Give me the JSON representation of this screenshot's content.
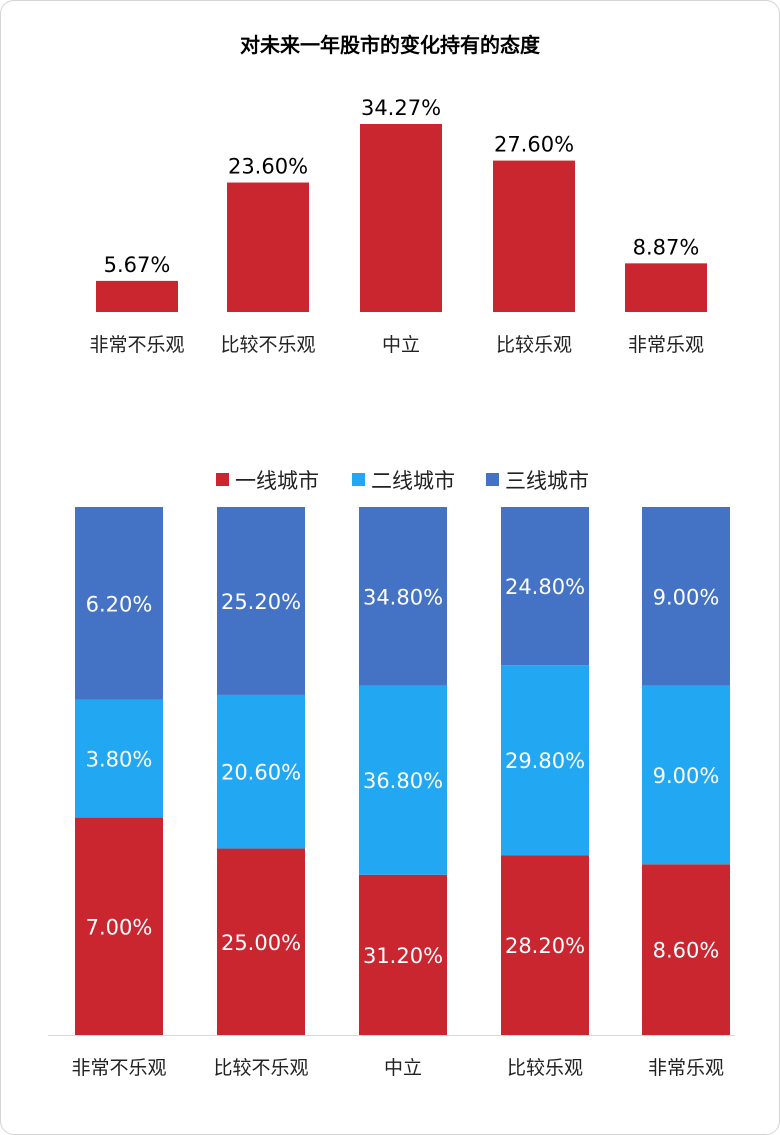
{
  "chart_data": [
    {
      "type": "bar",
      "title": "对未来一年股市的变化持有的态度",
      "categories": [
        "非常不乐观",
        "比较不乐观",
        "中立",
        "比较乐观",
        "非常乐观"
      ],
      "values": [
        5.67,
        23.6,
        34.27,
        27.6,
        8.87
      ],
      "value_labels": [
        "5.67%",
        "23.60%",
        "34.27%",
        "27.60%",
        "8.87%"
      ],
      "color": "#c9262f",
      "ylim": [
        0,
        36
      ],
      "xlabel": "",
      "ylabel": "",
      "grid": false
    },
    {
      "type": "bar",
      "stacked": true,
      "categories": [
        "非常不乐观",
        "比较不乐观",
        "中立",
        "比较乐观",
        "非常乐观"
      ],
      "series": [
        {
          "name": "一线城市",
          "color": "#c9262f",
          "values": [
            7.0,
            25.0,
            31.2,
            28.2,
            8.6
          ],
          "labels": [
            "7.00%",
            "25.00%",
            "31.20%",
            "28.20%",
            "8.60%"
          ]
        },
        {
          "name": "二线城市",
          "color": "#22a8f2",
          "values": [
            3.8,
            20.6,
            36.8,
            29.8,
            9.0
          ],
          "labels": [
            "3.80%",
            "20.60%",
            "36.80%",
            "29.80%",
            "9.00%"
          ]
        },
        {
          "name": "三线城市",
          "color": "#4472c4",
          "values": [
            6.2,
            25.2,
            34.8,
            24.8,
            9.0
          ],
          "labels": [
            "6.20%",
            "25.20%",
            "34.80%",
            "24.80%",
            "9.00%"
          ]
        }
      ],
      "legend": "top",
      "normalized": true,
      "xlabel": "",
      "ylabel": "",
      "grid": false
    }
  ]
}
